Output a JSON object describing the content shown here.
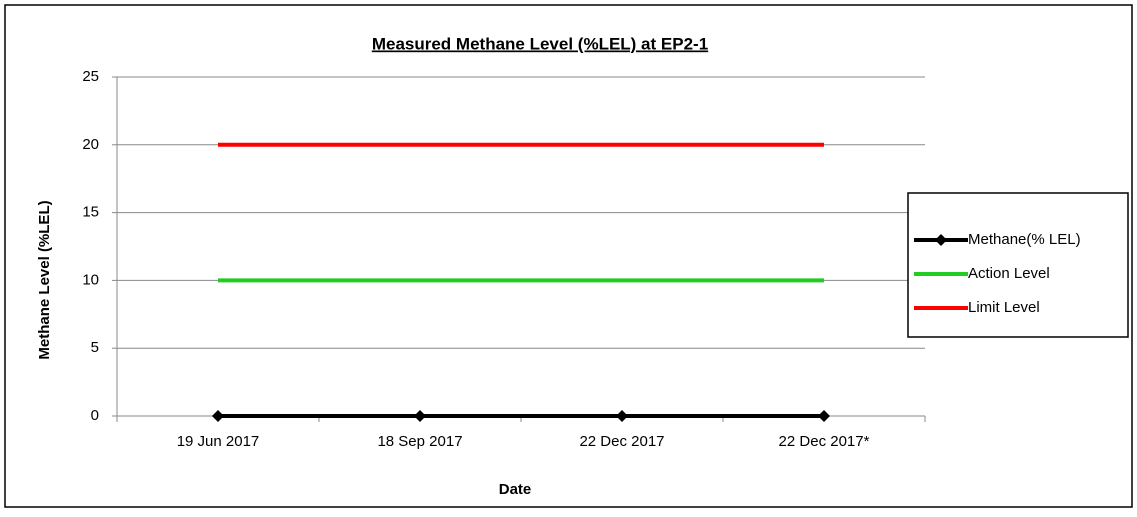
{
  "chart_data": {
    "type": "line",
    "title": "Measured Methane Level (%LEL) at EP2-1",
    "x_label": "Date",
    "y_label": "Methane Level (%LEL)",
    "categories": [
      "19 Jun 2017",
      "18 Sep 2017",
      "22 Dec 2017",
      "22 Dec 2017*"
    ],
    "series": [
      {
        "name": "Methane(% LEL)",
        "color": "#000000",
        "marker": "diamond",
        "values": [
          0,
          0,
          0,
          0
        ]
      },
      {
        "name": "Action Level",
        "color": "#22cc22",
        "values": [
          10,
          10,
          10,
          10
        ]
      },
      {
        "name": "Limit Level",
        "color": "#ff0000",
        "values": [
          20,
          20,
          20,
          20
        ]
      }
    ],
    "ylim": [
      0,
      25
    ],
    "yticks": [
      0,
      5,
      10,
      15,
      20,
      25
    ],
    "grid": true,
    "legend": "right"
  }
}
